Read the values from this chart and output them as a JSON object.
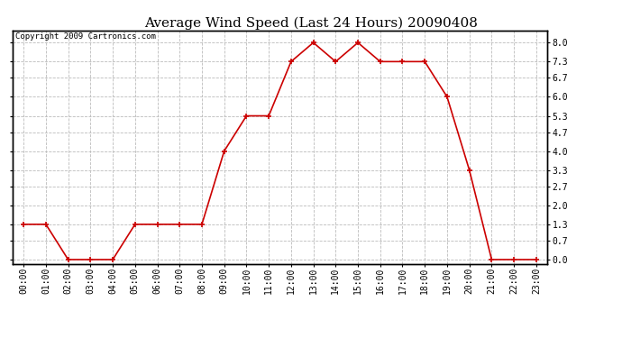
{
  "title": "Average Wind Speed (Last 24 Hours) 20090408",
  "copyright": "Copyright 2009 Cartronics.com",
  "hours": [
    "00:00",
    "01:00",
    "02:00",
    "03:00",
    "04:00",
    "05:00",
    "06:00",
    "07:00",
    "08:00",
    "09:00",
    "10:00",
    "11:00",
    "12:00",
    "13:00",
    "14:00",
    "15:00",
    "16:00",
    "17:00",
    "18:00",
    "19:00",
    "20:00",
    "21:00",
    "22:00",
    "23:00"
  ],
  "values": [
    1.3,
    1.3,
    0.0,
    0.0,
    0.0,
    1.3,
    1.3,
    1.3,
    1.3,
    4.0,
    5.3,
    5.3,
    7.3,
    8.0,
    7.3,
    8.0,
    7.3,
    7.3,
    7.3,
    6.0,
    3.3,
    0.0,
    0.0,
    0.0
  ],
  "line_color": "#cc0000",
  "marker": "+",
  "bg_color": "#ffffff",
  "plot_bg_color": "#ffffff",
  "grid_color": "#bbbbbb",
  "yticks": [
    0.0,
    0.7,
    1.3,
    2.0,
    2.7,
    3.3,
    4.0,
    4.7,
    5.3,
    6.0,
    6.7,
    7.3,
    8.0
  ],
  "ylim": [
    -0.15,
    8.45
  ],
  "title_fontsize": 11,
  "axis_fontsize": 7,
  "copyright_fontsize": 6.5
}
